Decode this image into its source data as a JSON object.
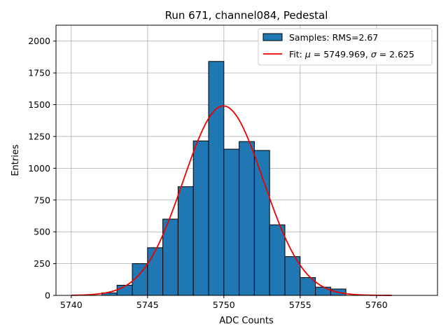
{
  "chart_data": {
    "type": "bar",
    "title": "Run 671, channel084, Pedestal",
    "xlabel": "ADC Counts",
    "ylabel": "Entries",
    "xlim": [
      5739,
      5764
    ],
    "ylim": [
      0,
      2125
    ],
    "xticks": [
      5740,
      5745,
      5750,
      5755,
      5760
    ],
    "yticks": [
      0,
      250,
      500,
      750,
      1000,
      1250,
      1500,
      1750,
      2000
    ],
    "grid": true,
    "legend_position": "top-right",
    "colors": {
      "bar_fill": "#1f77b4",
      "bar_edge": "#000000",
      "fit_line": "#ee0000",
      "grid": "#b0b0b0"
    },
    "histogram": {
      "name": "Samples: RMS=2.67",
      "bin_width": 1,
      "bin_lefts": [
        5742,
        5743,
        5744,
        5745,
        5746,
        5747,
        5748,
        5749,
        5750,
        5751,
        5752,
        5753,
        5754,
        5755,
        5756,
        5757
      ],
      "values": [
        20,
        80,
        250,
        375,
        600,
        855,
        1215,
        1840,
        1150,
        1210,
        1140,
        555,
        305,
        140,
        65,
        50
      ]
    },
    "fit": {
      "name_prefix": "Fit: ",
      "mu_symbol": "μ",
      "mu_text": " = 5749.969, ",
      "sigma_symbol": "σ",
      "sigma_text": " = 2.625",
      "mu": 5749.969,
      "sigma": 2.625,
      "amplitude": 1490,
      "x_range": [
        5740,
        5761
      ]
    }
  }
}
